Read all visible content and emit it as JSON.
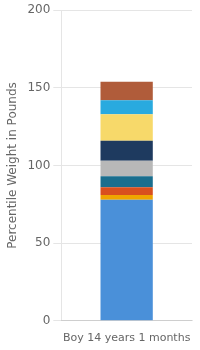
{
  "chart_data": {
    "type": "bar",
    "stacked": true,
    "ylabel": "Percentile Weight in Pounds",
    "categories": [
      "Boy 14 years 1 months"
    ],
    "series": [
      {
        "color": "#4a90d9",
        "values": [
          78
        ]
      },
      {
        "color": "#f0a500",
        "values": [
          3
        ]
      },
      {
        "color": "#d94f1e",
        "values": [
          5
        ]
      },
      {
        "color": "#1a6e8e",
        "values": [
          7
        ]
      },
      {
        "color": "#b8b8b8",
        "values": [
          10
        ]
      },
      {
        "color": "#1e3a5f",
        "values": [
          13
        ]
      },
      {
        "color": "#f7d96a",
        "values": [
          17
        ]
      },
      {
        "color": "#29aadf",
        "values": [
          9
        ]
      },
      {
        "color": "#b05c3a",
        "values": [
          12
        ]
      }
    ],
    "ylim": [
      0,
      200
    ],
    "yticks": [
      0,
      50,
      100,
      150,
      200
    ],
    "grid": "y"
  }
}
